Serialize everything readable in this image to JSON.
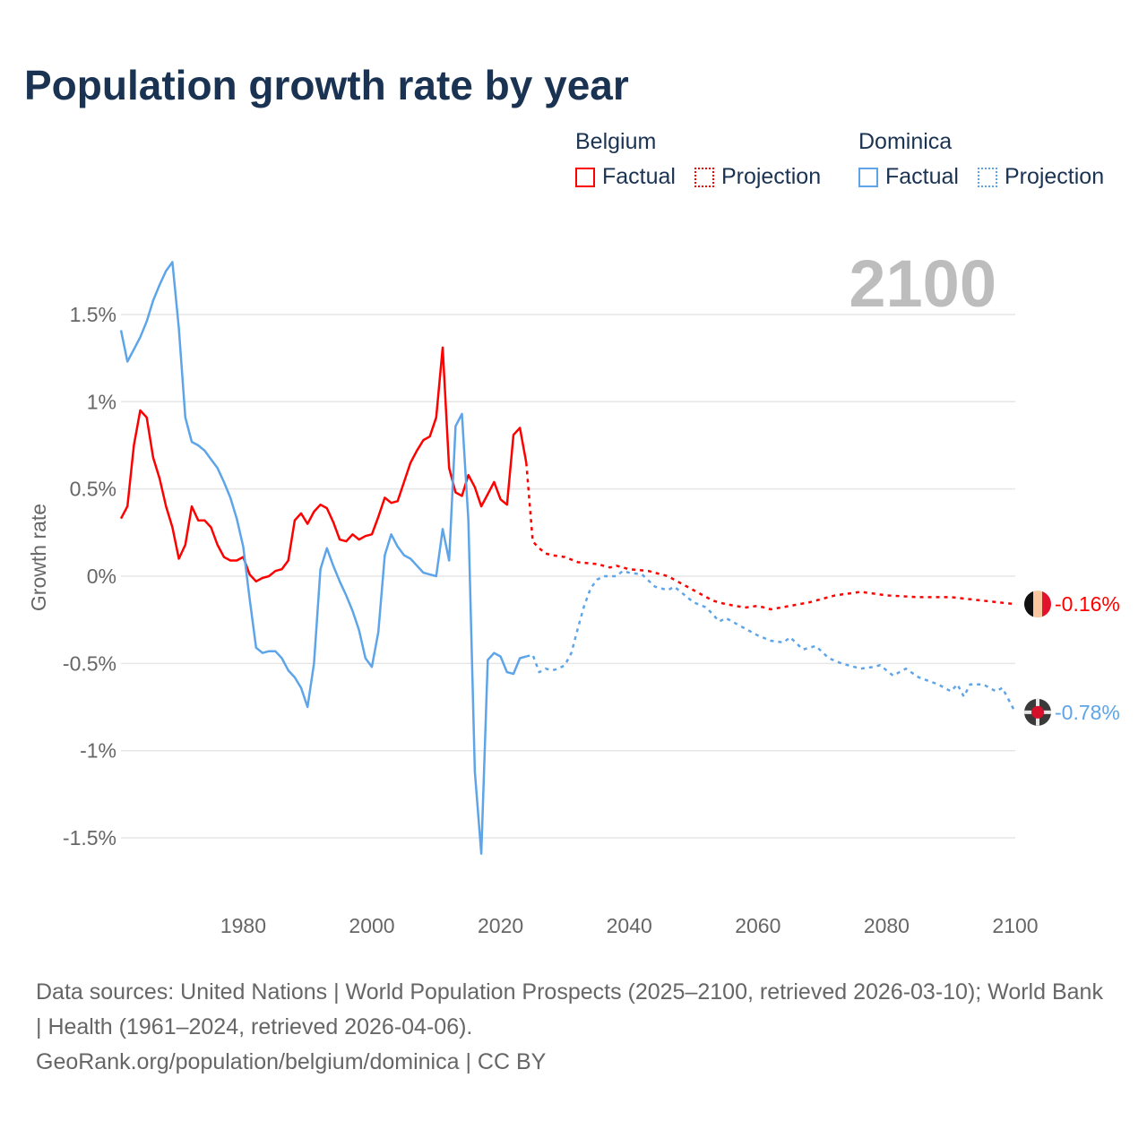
{
  "title": "Population growth rate by year",
  "legend": {
    "groups": [
      {
        "name": "Belgium",
        "factual": "Factual",
        "projection": "Projection",
        "color": "#ff0000"
      },
      {
        "name": "Dominica",
        "factual": "Factual",
        "projection": "Projection",
        "color": "#5da5e8"
      }
    ]
  },
  "year_display": "2100",
  "footer": {
    "line1": "Data sources: United Nations | World Population Prospects (2025–2100, retrieved 2026-03-10); World Bank | Health (1961–2024, retrieved 2026-04-06).",
    "line2": "GeoRank.org/population/belgium/dominica | CC BY"
  },
  "chart_data": {
    "type": "line",
    "title": "Population growth rate by year",
    "xlabel": "",
    "ylabel": "Growth rate",
    "xlim": [
      1961,
      2100
    ],
    "ylim": [
      -1.8,
      1.9
    ],
    "x_ticks": [
      1980,
      2000,
      2020,
      2040,
      2060,
      2080,
      2100
    ],
    "x_tick_labels": [
      "1980",
      "2000",
      "2020",
      "2040",
      "2060",
      "2080",
      "2100"
    ],
    "y_ticks": [
      1.5,
      1,
      0.5,
      0,
      -0.5,
      -1,
      -1.5
    ],
    "y_tick_labels": [
      "1.5%",
      "1%",
      "0.5%",
      "0%",
      "-0.5%",
      "-1%",
      "-1.5%"
    ],
    "grid": true,
    "legend_position": "top-right",
    "end_labels": {
      "Belgium": "-0.16%",
      "Dominica": "-0.78%"
    },
    "series": [
      {
        "name": "Belgium Factual",
        "color": "#ff0000",
        "dash": false,
        "x": [
          1961,
          1962,
          1963,
          1964,
          1965,
          1966,
          1967,
          1968,
          1969,
          1970,
          1971,
          1972,
          1973,
          1974,
          1975,
          1976,
          1977,
          1978,
          1979,
          1980,
          1981,
          1982,
          1983,
          1984,
          1985,
          1986,
          1987,
          1988,
          1989,
          1990,
          1991,
          1992,
          1993,
          1994,
          1995,
          1996,
          1997,
          1998,
          1999,
          2000,
          2001,
          2002,
          2003,
          2004,
          2005,
          2006,
          2007,
          2008,
          2009,
          2010,
          2011,
          2012,
          2013,
          2014,
          2015,
          2016,
          2017,
          2018,
          2019,
          2020,
          2021,
          2022,
          2023,
          2024
        ],
        "y": [
          0.33,
          0.4,
          0.75,
          0.95,
          0.91,
          0.68,
          0.56,
          0.4,
          0.28,
          0.1,
          0.18,
          0.4,
          0.32,
          0.32,
          0.28,
          0.18,
          0.11,
          0.09,
          0.09,
          0.11,
          0.01,
          -0.03,
          -0.01,
          0.0,
          0.03,
          0.04,
          0.09,
          0.32,
          0.36,
          0.3,
          0.37,
          0.41,
          0.39,
          0.31,
          0.21,
          0.2,
          0.24,
          0.21,
          0.23,
          0.24,
          0.34,
          0.45,
          0.42,
          0.43,
          0.54,
          0.65,
          0.72,
          0.78,
          0.8,
          0.91,
          1.31,
          0.62,
          0.48,
          0.46,
          0.58,
          0.51,
          0.4,
          0.47,
          0.54,
          0.44,
          0.41,
          0.81,
          0.85,
          0.65
        ]
      },
      {
        "name": "Belgium Projection",
        "color": "#ff0000",
        "dash": true,
        "x": [
          2024,
          2025,
          2026,
          2027,
          2028,
          2030,
          2032,
          2035,
          2037,
          2038,
          2040,
          2043,
          2046,
          2050,
          2053,
          2055,
          2058,
          2060,
          2062,
          2065,
          2068,
          2072,
          2076,
          2080,
          2085,
          2090,
          2095,
          2100
        ],
        "y": [
          0.65,
          0.2,
          0.16,
          0.13,
          0.12,
          0.11,
          0.08,
          0.07,
          0.05,
          0.06,
          0.04,
          0.03,
          0.0,
          -0.08,
          -0.14,
          -0.16,
          -0.18,
          -0.17,
          -0.19,
          -0.17,
          -0.15,
          -0.11,
          -0.09,
          -0.11,
          -0.12,
          -0.12,
          -0.14,
          -0.16
        ]
      },
      {
        "name": "Dominica Factual",
        "color": "#5da5e8",
        "dash": false,
        "x": [
          1961,
          1962,
          1963,
          1964,
          1965,
          1966,
          1967,
          1968,
          1969,
          1970,
          1971,
          1972,
          1973,
          1974,
          1975,
          1976,
          1977,
          1978,
          1979,
          1980,
          1981,
          1982,
          1983,
          1984,
          1985,
          1986,
          1987,
          1988,
          1989,
          1990,
          1991,
          1992,
          1993,
          1994,
          1995,
          1996,
          1997,
          1998,
          1999,
          2000,
          2001,
          2002,
          2003,
          2004,
          2005,
          2006,
          2007,
          2008,
          2009,
          2010,
          2011,
          2012,
          2013,
          2014,
          2015,
          2016,
          2017,
          2018,
          2019,
          2020,
          2021,
          2022,
          2023,
          2024
        ],
        "y": [
          1.41,
          1.23,
          1.3,
          1.37,
          1.46,
          1.58,
          1.67,
          1.75,
          1.8,
          1.42,
          0.91,
          0.77,
          0.75,
          0.72,
          0.67,
          0.62,
          0.54,
          0.45,
          0.33,
          0.17,
          -0.13,
          -0.41,
          -0.44,
          -0.43,
          -0.43,
          -0.47,
          -0.54,
          -0.58,
          -0.64,
          -0.75,
          -0.5,
          0.04,
          0.16,
          0.06,
          -0.03,
          -0.11,
          -0.2,
          -0.31,
          -0.47,
          -0.52,
          -0.32,
          0.12,
          0.24,
          0.17,
          0.12,
          0.1,
          0.06,
          0.02,
          0.01,
          0.0,
          0.27,
          0.09,
          0.86,
          0.93,
          0.32,
          -1.12,
          -1.59,
          -0.48,
          -0.44,
          -0.46,
          -0.55,
          -0.56,
          -0.47,
          -0.46
        ]
      },
      {
        "name": "Dominica Projection",
        "color": "#5da5e8",
        "dash": true,
        "x": [
          2024,
          2025,
          2026,
          2027,
          2028,
          2029,
          2030,
          2031,
          2032,
          2033,
          2034,
          2035,
          2036,
          2038,
          2039,
          2040,
          2042,
          2044,
          2046,
          2047,
          2050,
          2052,
          2054,
          2055,
          2058,
          2060,
          2062,
          2064,
          2065,
          2067,
          2069,
          2071,
          2073,
          2076,
          2078,
          2079,
          2081,
          2083,
          2085,
          2088,
          2090,
          2091,
          2092,
          2093,
          2095,
          2097,
          2098,
          2100
        ],
        "y": [
          -0.46,
          -0.45,
          -0.55,
          -0.53,
          -0.54,
          -0.53,
          -0.51,
          -0.44,
          -0.3,
          -0.17,
          -0.07,
          -0.02,
          0.0,
          0.0,
          0.03,
          0.02,
          0.01,
          -0.06,
          -0.08,
          -0.06,
          -0.15,
          -0.18,
          -0.26,
          -0.24,
          -0.3,
          -0.34,
          -0.37,
          -0.38,
          -0.35,
          -0.42,
          -0.4,
          -0.47,
          -0.5,
          -0.53,
          -0.52,
          -0.51,
          -0.57,
          -0.53,
          -0.58,
          -0.62,
          -0.66,
          -0.62,
          -0.69,
          -0.62,
          -0.62,
          -0.66,
          -0.64,
          -0.78
        ]
      }
    ]
  }
}
